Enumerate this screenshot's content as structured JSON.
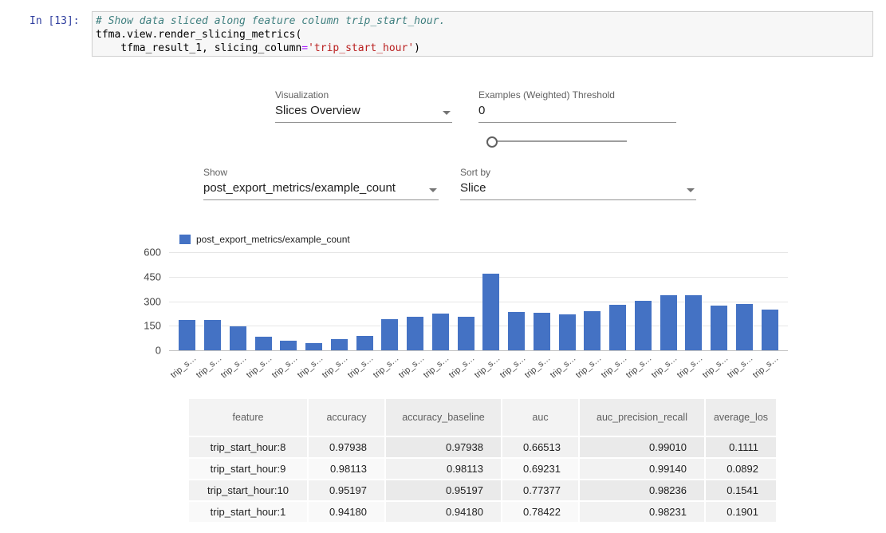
{
  "notebook": {
    "prompt": "In [13]:",
    "code_comment": "# Show data sliced along feature column trip_start_hour.",
    "code_line2": "tfma.view.render_slicing_metrics(",
    "code_line3_pre": "    tfma_result_1, slicing_column",
    "code_line3_op": "=",
    "code_line3_string": "'trip_start_hour'",
    "code_line3_close": ")"
  },
  "controls": {
    "visualization_label": "Visualization",
    "visualization_value": "Slices Overview",
    "threshold_label": "Examples (Weighted) Threshold",
    "threshold_value": "0",
    "show_label": "Show",
    "show_value": "post_export_metrics/example_count",
    "sort_label": "Sort by",
    "sort_value": "Slice"
  },
  "chart_data": {
    "type": "bar",
    "legend": [
      "post_export_metrics/example_count"
    ],
    "series_color": "#4472c4",
    "categories": [
      "trip_s…",
      "trip_s…",
      "trip_s…",
      "trip_s…",
      "trip_s…",
      "trip_s…",
      "trip_s…",
      "trip_s…",
      "trip_s…",
      "trip_s…",
      "trip_s…",
      "trip_s…",
      "trip_s…",
      "trip_s…",
      "trip_s…",
      "trip_s…",
      "trip_s…",
      "trip_s…",
      "trip_s…",
      "trip_s…",
      "trip_s…",
      "trip_s…",
      "trip_s…",
      "trip_s…"
    ],
    "values": [
      186,
      186,
      147,
      83,
      59,
      44,
      69,
      88,
      191,
      206,
      225,
      206,
      466,
      235,
      230,
      220,
      240,
      280,
      304,
      338,
      338,
      274,
      284,
      250
    ],
    "ylim": [
      0,
      600
    ],
    "yticks": [
      0,
      150,
      300,
      450,
      600
    ],
    "xlabel": "",
    "ylabel": "",
    "grid": true,
    "legend_position": "top-left"
  },
  "table": {
    "columns": [
      "feature",
      "accuracy",
      "accuracy_baseline",
      "auc",
      "auc_precision_recall",
      "average_los"
    ],
    "rows": [
      [
        "trip_start_hour:8",
        "0.97938",
        "0.97938",
        "0.66513",
        "0.99010",
        "0.1111"
      ],
      [
        "trip_start_hour:9",
        "0.98113",
        "0.98113",
        "0.69231",
        "0.99140",
        "0.0892"
      ],
      [
        "trip_start_hour:10",
        "0.95197",
        "0.95197",
        "0.77377",
        "0.98236",
        "0.1541"
      ],
      [
        "trip_start_hour:1",
        "0.94180",
        "0.94180",
        "0.78422",
        "0.98231",
        "0.1901"
      ]
    ]
  }
}
